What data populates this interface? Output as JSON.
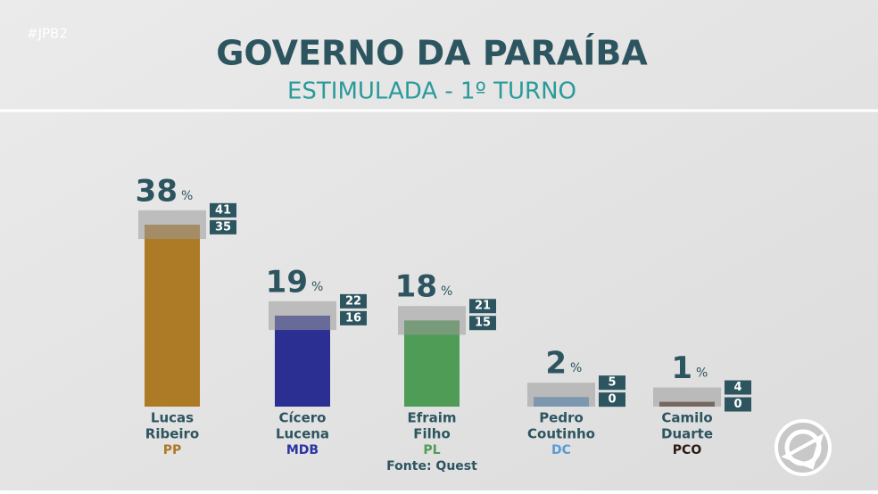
{
  "chart_data": {
    "type": "bar",
    "tag": "#JPB2",
    "title": "GOVERNO DA PARAÍBA",
    "subtitle": "ESTIMULADA - 1º TURNO",
    "source": "Fonte: Quest",
    "unit": "%",
    "categories": [
      [
        "Lucas",
        "Ribeiro"
      ],
      [
        "Cícero",
        "Lucena"
      ],
      [
        "Efraim",
        "Filho"
      ],
      [
        "Pedro",
        "Coutinho"
      ],
      [
        "Camilo",
        "Duarte"
      ]
    ],
    "parties": [
      "PP",
      "MDB",
      "PL",
      "DC",
      "PCO"
    ],
    "colors": [
      "#ad7a26",
      "#2c2f92",
      "#4f9c57",
      "#5a93c6",
      "#4a2b1b"
    ],
    "party_colors": [
      "#ad7a26",
      "#2c35a0",
      "#4f9c57",
      "#5a9ad2",
      "#2a1a10"
    ],
    "values": [
      38,
      19,
      18,
      2,
      1
    ],
    "upper": [
      41,
      22,
      21,
      5,
      4
    ],
    "lower": [
      35,
      16,
      15,
      0,
      0
    ]
  }
}
